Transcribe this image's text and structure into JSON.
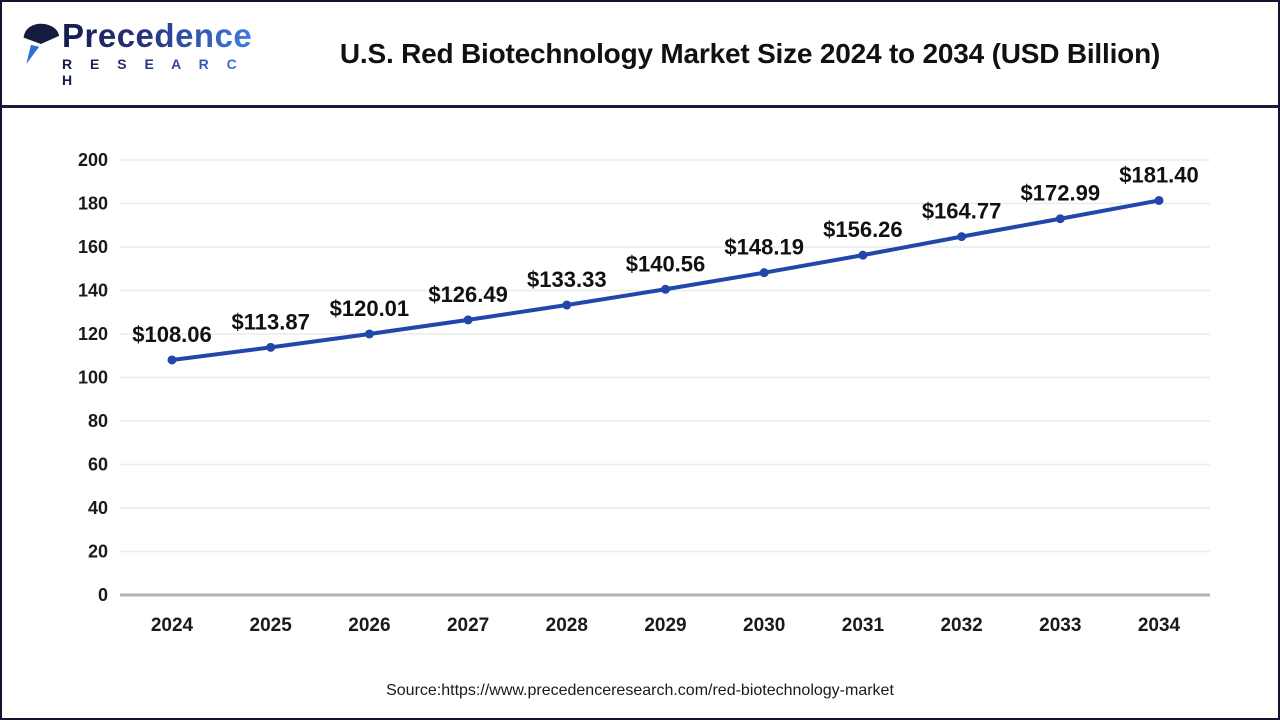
{
  "header": {
    "title": "U.S. Red Biotechnology Market Size 2024 to 2034 (USD Billion)",
    "logo": {
      "name": "Precedence",
      "subtitle": "R E S E A R C H"
    }
  },
  "chart_data": {
    "type": "line",
    "title": "U.S. Red Biotechnology Market Size 2024 to 2034 (USD Billion)",
    "categories": [
      "2024",
      "2025",
      "2026",
      "2027",
      "2028",
      "2029",
      "2030",
      "2031",
      "2032",
      "2033",
      "2034"
    ],
    "values": [
      108.06,
      113.87,
      120.01,
      126.49,
      133.33,
      140.56,
      148.19,
      156.26,
      164.77,
      172.99,
      181.4
    ],
    "point_labels": [
      "$108.06",
      "$113.87",
      "$120.01",
      "$126.49",
      "$133.33",
      "$140.56",
      "$148.19",
      "$156.26",
      "$164.77",
      "$172.99",
      "$181.40"
    ],
    "xlabel": "",
    "ylabel": "",
    "ylim": [
      0,
      200
    ],
    "yticks": [
      0,
      20,
      40,
      60,
      80,
      100,
      120,
      140,
      160,
      180,
      200
    ],
    "grid": "horizontal",
    "legend": "none",
    "marker": "circle",
    "line_color": "#2247aa",
    "grid_color": "#ececec",
    "axis_color": "#b3b3b8"
  },
  "source": {
    "text": "Source:https://www.precedenceresearch.com/red-biotechnology-market"
  },
  "colors": {
    "accent_line": "#2247aa",
    "frame_border": "#14142e",
    "header_divider": "#1b1b3c",
    "logo_dark": "#141b4d",
    "logo_blue": "#3f7de0",
    "title_text": "#111111",
    "tick_text": "#1a1a1a"
  }
}
